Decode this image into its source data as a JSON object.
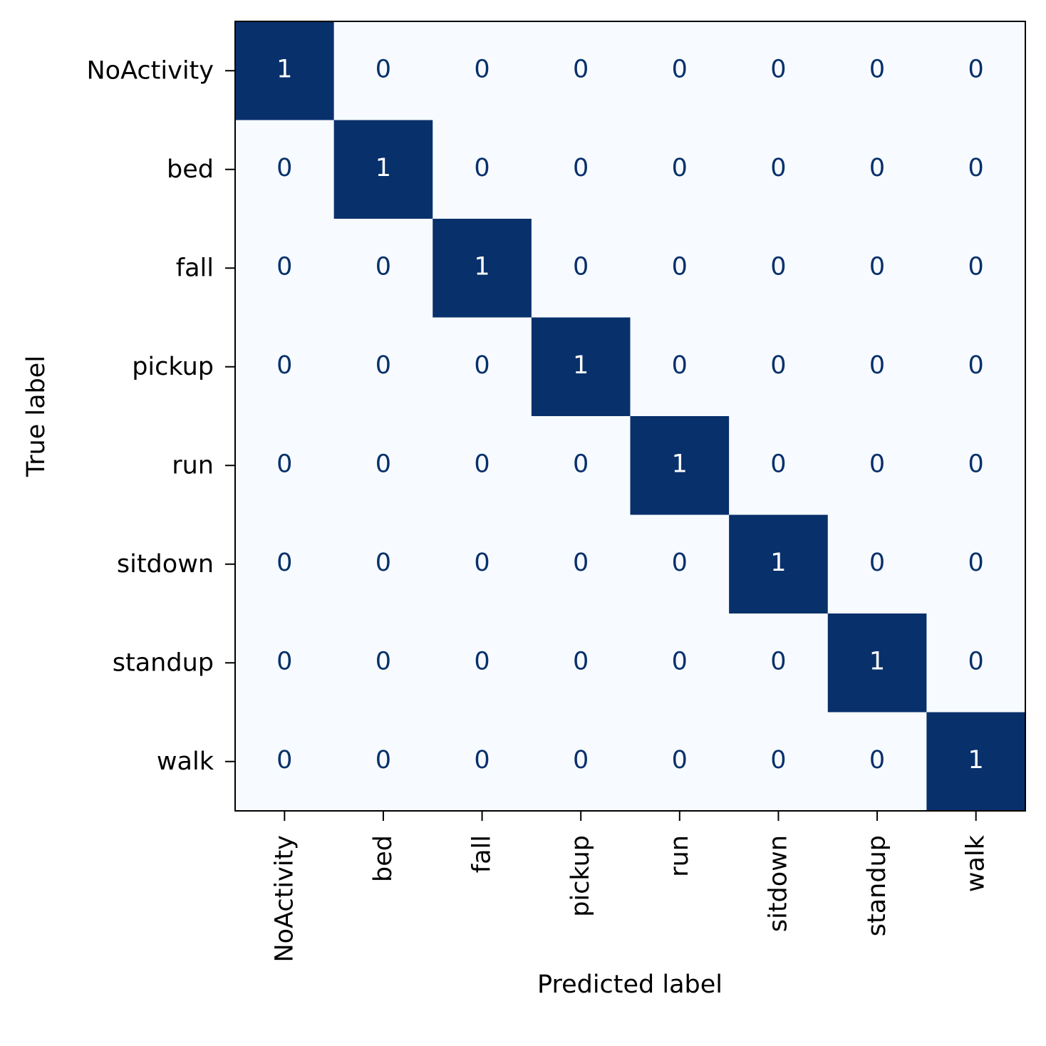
{
  "chart_data": {
    "type": "heatmap",
    "title": "",
    "xlabel": "Predicted label",
    "ylabel": "True label",
    "x_categories": [
      "NoActivity",
      "bed",
      "fall",
      "pickup",
      "run",
      "sitdown",
      "standup",
      "walk"
    ],
    "y_categories": [
      "NoActivity",
      "bed",
      "fall",
      "pickup",
      "run",
      "sitdown",
      "standup",
      "walk"
    ],
    "values": [
      [
        1,
        0,
        0,
        0,
        0,
        0,
        0,
        0
      ],
      [
        0,
        1,
        0,
        0,
        0,
        0,
        0,
        0
      ],
      [
        0,
        0,
        1,
        0,
        0,
        0,
        0,
        0
      ],
      [
        0,
        0,
        0,
        1,
        0,
        0,
        0,
        0
      ],
      [
        0,
        0,
        0,
        0,
        1,
        0,
        0,
        0
      ],
      [
        0,
        0,
        0,
        0,
        0,
        1,
        0,
        0
      ],
      [
        0,
        0,
        0,
        0,
        0,
        0,
        1,
        0
      ],
      [
        0,
        0,
        0,
        0,
        0,
        0,
        0,
        1
      ]
    ],
    "colormap": "Blues",
    "colors": {
      "low": "#f7fbff",
      "high": "#08306b",
      "text_on_low": "#08306b",
      "text_on_high": "#ffffff"
    },
    "value_range": [
      0,
      1
    ],
    "grid": false,
    "colorbar": false
  }
}
